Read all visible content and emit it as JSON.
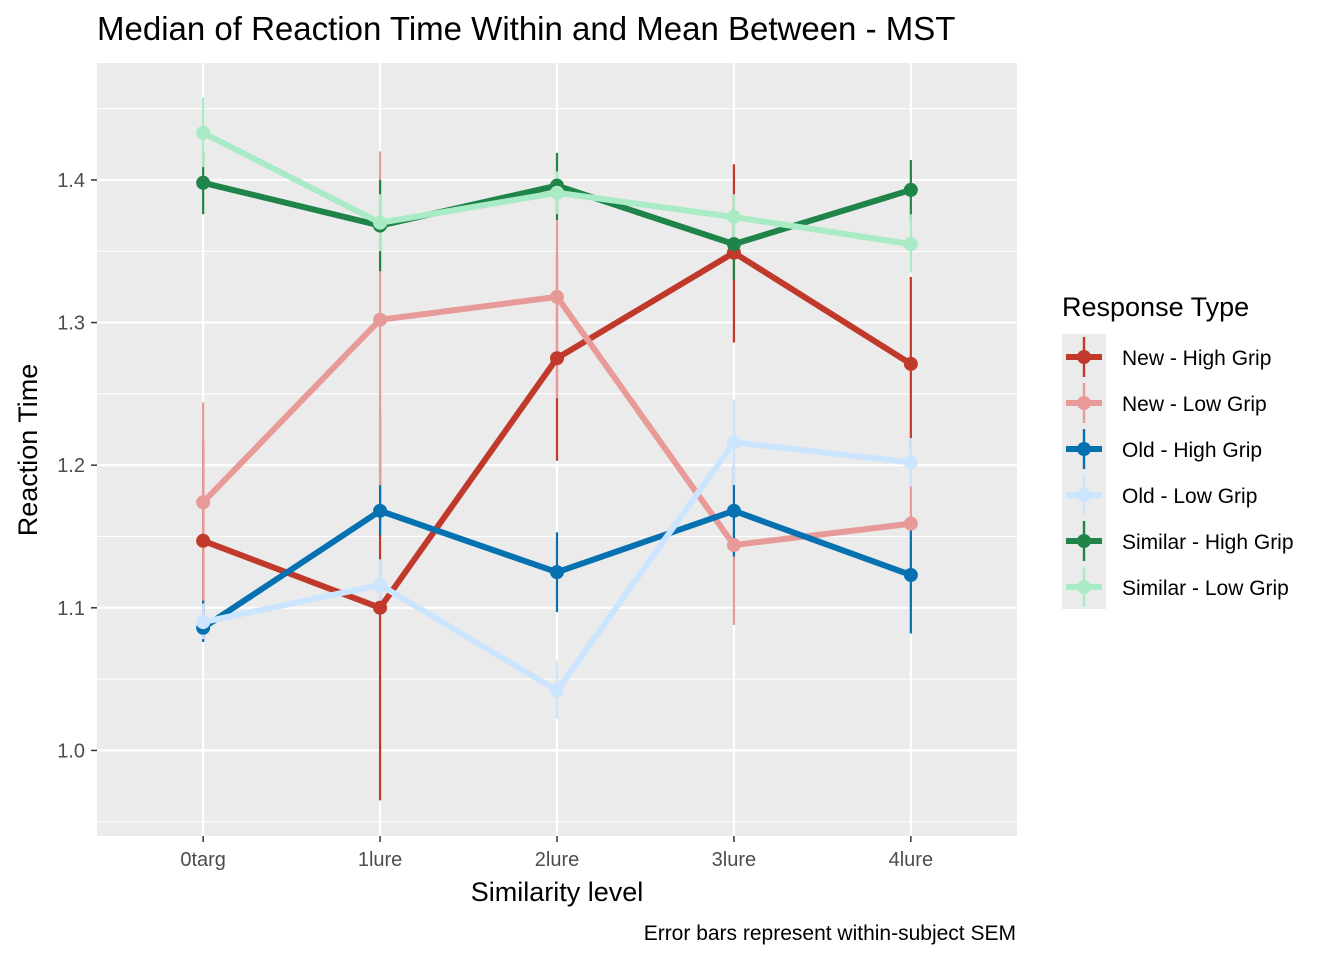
{
  "chart_data": {
    "type": "line",
    "title": "Median of Reaction Time Within and Mean Between - MST",
    "xlabel": "Similarity level",
    "ylabel": "Reaction Time",
    "caption": "Error bars represent within-subject SEM",
    "categories": [
      "0targ",
      "1lure",
      "2lure",
      "3lure",
      "4lure"
    ],
    "ylim": [
      0.94,
      1.482
    ],
    "yticks": [
      1.0,
      1.1,
      1.2,
      1.3,
      1.4
    ],
    "ytick_labels": [
      "1.0",
      "1.1",
      "1.2",
      "1.3",
      "1.4"
    ],
    "grid": true,
    "legend": {
      "title": "Response Type",
      "position": "right"
    },
    "series": [
      {
        "name": "New - High Grip",
        "color": "#c0392b",
        "values": [
          1.147,
          1.1,
          1.275,
          1.349,
          1.271
        ],
        "err_low": [
          1.077,
          0.965,
          1.203,
          1.286,
          1.21
        ],
        "err_high": [
          1.217,
          1.236,
          1.347,
          1.411,
          1.332
        ]
      },
      {
        "name": "New - Low Grip",
        "color": "#e89a98",
        "values": [
          1.174,
          1.302,
          1.318,
          1.144,
          1.159
        ],
        "err_low": [
          1.104,
          1.184,
          1.247,
          1.088,
          1.101
        ],
        "err_high": [
          1.244,
          1.42,
          1.39,
          1.201,
          1.218
        ]
      },
      {
        "name": "Old - High Grip",
        "color": "#0571b0",
        "values": [
          1.086,
          1.168,
          1.125,
          1.168,
          1.123
        ],
        "err_low": [
          1.076,
          1.151,
          1.097,
          1.136,
          1.082
        ],
        "err_high": [
          1.105,
          1.186,
          1.153,
          1.2,
          1.163
        ]
      },
      {
        "name": "Old - Low Grip",
        "color": "#cce5ff",
        "values": [
          1.09,
          1.116,
          1.042,
          1.216,
          1.202
        ],
        "err_low": [
          1.078,
          1.098,
          1.022,
          1.186,
          1.185
        ],
        "err_high": [
          1.103,
          1.134,
          1.063,
          1.246,
          1.219
        ]
      },
      {
        "name": "Similar - High Grip",
        "color": "#1e8449",
        "values": [
          1.398,
          1.368,
          1.396,
          1.355,
          1.393
        ],
        "err_low": [
          1.376,
          1.336,
          1.372,
          1.33,
          1.371
        ],
        "err_high": [
          1.42,
          1.4,
          1.419,
          1.38,
          1.414
        ]
      },
      {
        "name": "Similar - Low Grip",
        "color": "#a9ebc4",
        "values": [
          1.433,
          1.37,
          1.391,
          1.374,
          1.355
        ],
        "err_low": [
          1.409,
          1.35,
          1.376,
          1.358,
          1.335
        ],
        "err_high": [
          1.458,
          1.39,
          1.406,
          1.39,
          1.376
        ]
      }
    ]
  }
}
